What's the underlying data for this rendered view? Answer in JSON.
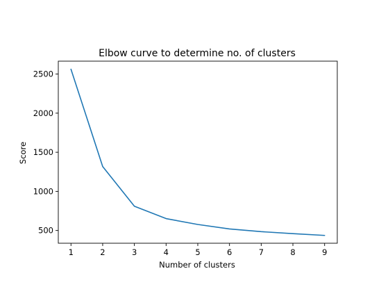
{
  "chart_data": {
    "type": "line",
    "title": "Elbow curve to determine no. of clusters",
    "xlabel": "Number of clusters",
    "ylabel": "Score",
    "x": [
      1,
      2,
      3,
      4,
      5,
      6,
      7,
      8,
      9
    ],
    "series": [
      {
        "values": [
          2562,
          1318,
          810,
          652,
          577,
          520,
          485,
          460,
          437
        ],
        "color": "#1f77b4"
      }
    ],
    "xlim": [
      0.6,
      9.4
    ],
    "ylim": [
      337,
      2665
    ],
    "xticks": [
      1,
      2,
      3,
      4,
      5,
      6,
      7,
      8,
      9
    ],
    "yticks": [
      500,
      1000,
      1500,
      2000,
      2500
    ],
    "grid": false,
    "legend": "none"
  }
}
